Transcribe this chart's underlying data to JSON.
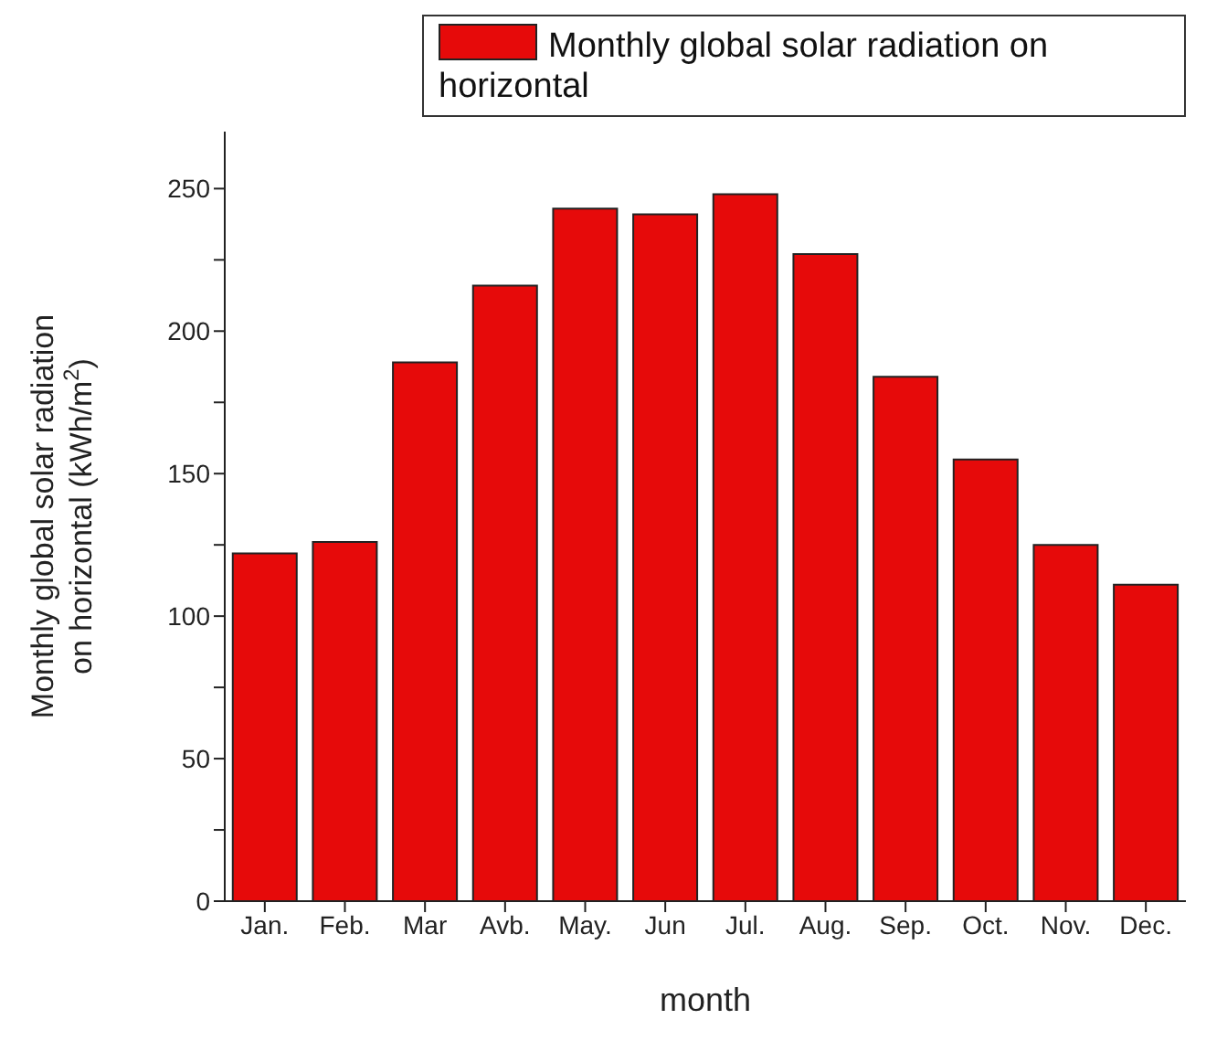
{
  "chart_data": {
    "type": "bar",
    "xlabel": "month",
    "ylabel": "Monthly global solar radiation on horizontal (kWh/m$^{2}$)",
    "categories": [
      "Jan.",
      "Feb.",
      "Mar",
      "Avb.",
      "May.",
      "Jun",
      "Jul.",
      "Aug.",
      "Sep.",
      "Oct.",
      "Nov.",
      "Dec."
    ],
    "series": [
      {
        "name": "Monthly global solar radiation on horizontal",
        "color": "#e60a0a",
        "values": [
          122,
          126,
          189,
          216,
          243,
          241,
          248,
          227,
          184,
          155,
          125,
          111
        ]
      }
    ],
    "ylim": [
      0,
      270
    ],
    "yticks": [
      0,
      {
        "value": 25,
        "label": null
      },
      50,
      {
        "value": 75,
        "label": null
      },
      100,
      {
        "value": 125,
        "label": null
      },
      150,
      {
        "value": 175,
        "label": null
      },
      200,
      {
        "value": 225,
        "label": null
      },
      250
    ],
    "grid": false,
    "legend": "top right"
  }
}
